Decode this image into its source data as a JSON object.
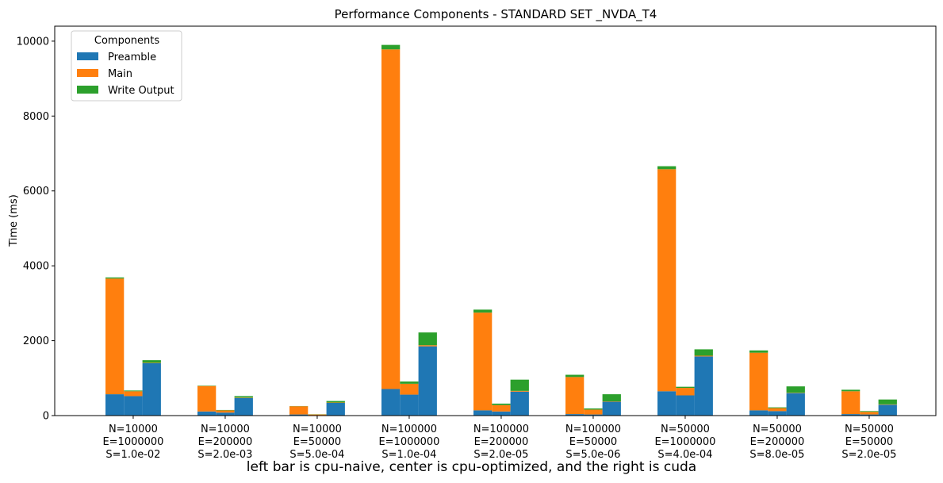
{
  "chart_data": {
    "type": "bar",
    "stacked": true,
    "title": "Performance Components - STANDARD SET _NVDA_T4",
    "xlabel": "",
    "ylabel": "Time (ms)",
    "ylim": [
      0,
      10400
    ],
    "yticks": [
      0,
      2000,
      4000,
      6000,
      8000,
      10000
    ],
    "legend": {
      "title": "Components",
      "placement": "top-left"
    },
    "bars_per_group": [
      "cpu-naive",
      "cpu-optimized",
      "cuda"
    ],
    "categories": [
      [
        "N=10000",
        "E=1000000",
        "S=1.0e-02"
      ],
      [
        "N=10000",
        "E=200000",
        "S=2.0e-03"
      ],
      [
        "N=10000",
        "E=50000",
        "S=5.0e-04"
      ],
      [
        "N=100000",
        "E=1000000",
        "S=1.0e-04"
      ],
      [
        "N=100000",
        "E=200000",
        "S=2.0e-05"
      ],
      [
        "N=100000",
        "E=50000",
        "S=5.0e-06"
      ],
      [
        "N=50000",
        "E=1000000",
        "S=4.0e-04"
      ],
      [
        "N=50000",
        "E=200000",
        "S=8.0e-05"
      ],
      [
        "N=50000",
        "E=50000",
        "S=2.0e-05"
      ]
    ],
    "series": [
      {
        "name": "Preamble",
        "color": "#1f77b4",
        "values": [
          [
            570,
            520,
            1400
          ],
          [
            110,
            80,
            470
          ],
          [
            30,
            10,
            340
          ],
          [
            710,
            560,
            1850
          ],
          [
            140,
            110,
            640
          ],
          [
            40,
            30,
            370
          ],
          [
            650,
            540,
            1580
          ],
          [
            140,
            120,
            600
          ],
          [
            40,
            30,
            290
          ]
        ]
      },
      {
        "name": "Main",
        "color": "#ff7f0e",
        "values": [
          [
            3090,
            130,
            10
          ],
          [
            680,
            60,
            10
          ],
          [
            220,
            20,
            10
          ],
          [
            9070,
            290,
            30
          ],
          [
            2610,
            170,
            20
          ],
          [
            990,
            130,
            10
          ],
          [
            5930,
            200,
            20
          ],
          [
            1540,
            80,
            10
          ],
          [
            610,
            70,
            10
          ]
        ]
      },
      {
        "name": "Write Output",
        "color": "#2ca02c",
        "values": [
          [
            30,
            20,
            70
          ],
          [
            10,
            10,
            40
          ],
          [
            5,
            5,
            40
          ],
          [
            120,
            60,
            340
          ],
          [
            80,
            40,
            300
          ],
          [
            60,
            30,
            190
          ],
          [
            80,
            30,
            170
          ],
          [
            60,
            20,
            170
          ],
          [
            40,
            20,
            130
          ]
        ]
      }
    ]
  },
  "caption": "left bar is cpu-naive, center is cpu-optimized, and the right is cuda"
}
